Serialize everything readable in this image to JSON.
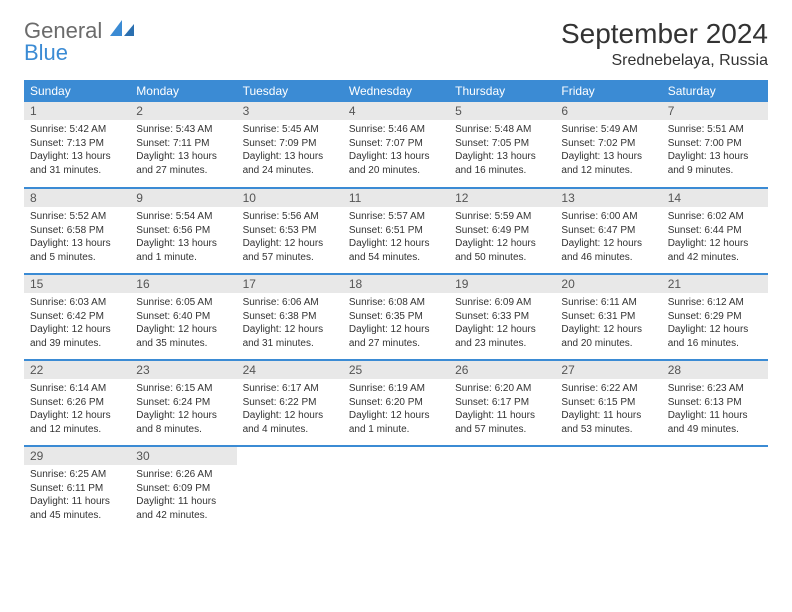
{
  "logo": {
    "line1": "General",
    "line2": "Blue"
  },
  "title": "September 2024",
  "location": "Srednebelaya, Russia",
  "colors": {
    "header_bg": "#3b8bd4",
    "header_text": "#ffffff",
    "daynum_bg": "#e8e8e8",
    "border": "#3b8bd4",
    "text": "#333333"
  },
  "weekdays": [
    "Sunday",
    "Monday",
    "Tuesday",
    "Wednesday",
    "Thursday",
    "Friday",
    "Saturday"
  ],
  "weeks": [
    [
      {
        "day": "1",
        "sunrise": "Sunrise: 5:42 AM",
        "sunset": "Sunset: 7:13 PM",
        "daylight": "Daylight: 13 hours and 31 minutes."
      },
      {
        "day": "2",
        "sunrise": "Sunrise: 5:43 AM",
        "sunset": "Sunset: 7:11 PM",
        "daylight": "Daylight: 13 hours and 27 minutes."
      },
      {
        "day": "3",
        "sunrise": "Sunrise: 5:45 AM",
        "sunset": "Sunset: 7:09 PM",
        "daylight": "Daylight: 13 hours and 24 minutes."
      },
      {
        "day": "4",
        "sunrise": "Sunrise: 5:46 AM",
        "sunset": "Sunset: 7:07 PM",
        "daylight": "Daylight: 13 hours and 20 minutes."
      },
      {
        "day": "5",
        "sunrise": "Sunrise: 5:48 AM",
        "sunset": "Sunset: 7:05 PM",
        "daylight": "Daylight: 13 hours and 16 minutes."
      },
      {
        "day": "6",
        "sunrise": "Sunrise: 5:49 AM",
        "sunset": "Sunset: 7:02 PM",
        "daylight": "Daylight: 13 hours and 12 minutes."
      },
      {
        "day": "7",
        "sunrise": "Sunrise: 5:51 AM",
        "sunset": "Sunset: 7:00 PM",
        "daylight": "Daylight: 13 hours and 9 minutes."
      }
    ],
    [
      {
        "day": "8",
        "sunrise": "Sunrise: 5:52 AM",
        "sunset": "Sunset: 6:58 PM",
        "daylight": "Daylight: 13 hours and 5 minutes."
      },
      {
        "day": "9",
        "sunrise": "Sunrise: 5:54 AM",
        "sunset": "Sunset: 6:56 PM",
        "daylight": "Daylight: 13 hours and 1 minute."
      },
      {
        "day": "10",
        "sunrise": "Sunrise: 5:56 AM",
        "sunset": "Sunset: 6:53 PM",
        "daylight": "Daylight: 12 hours and 57 minutes."
      },
      {
        "day": "11",
        "sunrise": "Sunrise: 5:57 AM",
        "sunset": "Sunset: 6:51 PM",
        "daylight": "Daylight: 12 hours and 54 minutes."
      },
      {
        "day": "12",
        "sunrise": "Sunrise: 5:59 AM",
        "sunset": "Sunset: 6:49 PM",
        "daylight": "Daylight: 12 hours and 50 minutes."
      },
      {
        "day": "13",
        "sunrise": "Sunrise: 6:00 AM",
        "sunset": "Sunset: 6:47 PM",
        "daylight": "Daylight: 12 hours and 46 minutes."
      },
      {
        "day": "14",
        "sunrise": "Sunrise: 6:02 AM",
        "sunset": "Sunset: 6:44 PM",
        "daylight": "Daylight: 12 hours and 42 minutes."
      }
    ],
    [
      {
        "day": "15",
        "sunrise": "Sunrise: 6:03 AM",
        "sunset": "Sunset: 6:42 PM",
        "daylight": "Daylight: 12 hours and 39 minutes."
      },
      {
        "day": "16",
        "sunrise": "Sunrise: 6:05 AM",
        "sunset": "Sunset: 6:40 PM",
        "daylight": "Daylight: 12 hours and 35 minutes."
      },
      {
        "day": "17",
        "sunrise": "Sunrise: 6:06 AM",
        "sunset": "Sunset: 6:38 PM",
        "daylight": "Daylight: 12 hours and 31 minutes."
      },
      {
        "day": "18",
        "sunrise": "Sunrise: 6:08 AM",
        "sunset": "Sunset: 6:35 PM",
        "daylight": "Daylight: 12 hours and 27 minutes."
      },
      {
        "day": "19",
        "sunrise": "Sunrise: 6:09 AM",
        "sunset": "Sunset: 6:33 PM",
        "daylight": "Daylight: 12 hours and 23 minutes."
      },
      {
        "day": "20",
        "sunrise": "Sunrise: 6:11 AM",
        "sunset": "Sunset: 6:31 PM",
        "daylight": "Daylight: 12 hours and 20 minutes."
      },
      {
        "day": "21",
        "sunrise": "Sunrise: 6:12 AM",
        "sunset": "Sunset: 6:29 PM",
        "daylight": "Daylight: 12 hours and 16 minutes."
      }
    ],
    [
      {
        "day": "22",
        "sunrise": "Sunrise: 6:14 AM",
        "sunset": "Sunset: 6:26 PM",
        "daylight": "Daylight: 12 hours and 12 minutes."
      },
      {
        "day": "23",
        "sunrise": "Sunrise: 6:15 AM",
        "sunset": "Sunset: 6:24 PM",
        "daylight": "Daylight: 12 hours and 8 minutes."
      },
      {
        "day": "24",
        "sunrise": "Sunrise: 6:17 AM",
        "sunset": "Sunset: 6:22 PM",
        "daylight": "Daylight: 12 hours and 4 minutes."
      },
      {
        "day": "25",
        "sunrise": "Sunrise: 6:19 AM",
        "sunset": "Sunset: 6:20 PM",
        "daylight": "Daylight: 12 hours and 1 minute."
      },
      {
        "day": "26",
        "sunrise": "Sunrise: 6:20 AM",
        "sunset": "Sunset: 6:17 PM",
        "daylight": "Daylight: 11 hours and 57 minutes."
      },
      {
        "day": "27",
        "sunrise": "Sunrise: 6:22 AM",
        "sunset": "Sunset: 6:15 PM",
        "daylight": "Daylight: 11 hours and 53 minutes."
      },
      {
        "day": "28",
        "sunrise": "Sunrise: 6:23 AM",
        "sunset": "Sunset: 6:13 PM",
        "daylight": "Daylight: 11 hours and 49 minutes."
      }
    ],
    [
      {
        "day": "29",
        "sunrise": "Sunrise: 6:25 AM",
        "sunset": "Sunset: 6:11 PM",
        "daylight": "Daylight: 11 hours and 45 minutes."
      },
      {
        "day": "30",
        "sunrise": "Sunrise: 6:26 AM",
        "sunset": "Sunset: 6:09 PM",
        "daylight": "Daylight: 11 hours and 42 minutes."
      },
      null,
      null,
      null,
      null,
      null
    ]
  ]
}
